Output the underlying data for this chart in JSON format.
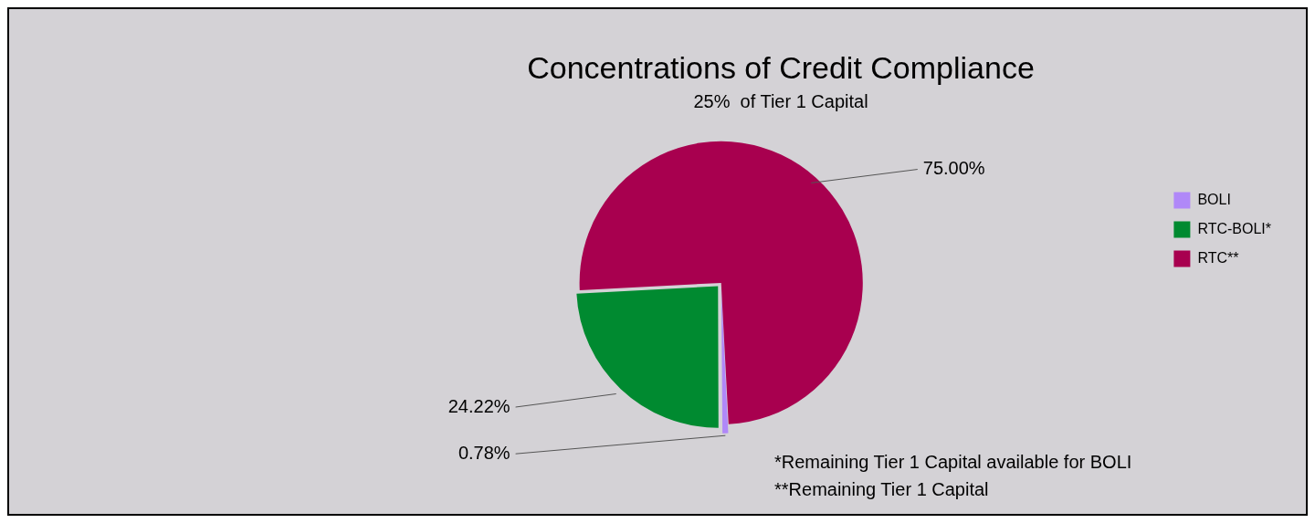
{
  "chart_data": {
    "type": "pie",
    "title": "Concentrations of Credit Compliance",
    "subtitle": "25%  of Tier 1 Capital",
    "categories": [
      "BOLI",
      "RTC-BOLI*",
      "RTC**"
    ],
    "values": [
      0.78,
      24.22,
      75
    ],
    "colors": [
      "#b088f8",
      "#008a30",
      "#a8004f"
    ],
    "value_labels": [
      "0.78%",
      "24.22%",
      "75.00%"
    ],
    "legend": "right",
    "annotations": [
      "*Remaining Tier 1 Capital available for BOLI",
      "**Remaining Tier 1 Capital"
    ]
  }
}
